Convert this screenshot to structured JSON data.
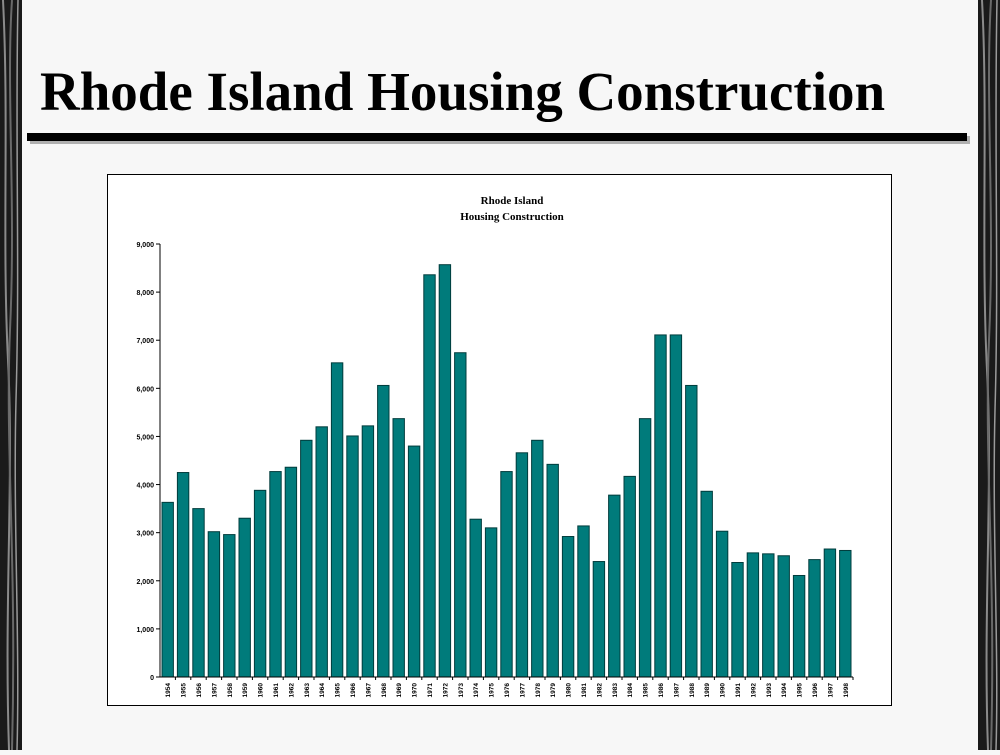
{
  "slide": {
    "title": "Rhode Island Housing Construction"
  },
  "colors": {
    "bar_fill": "#007b7b",
    "bar_stroke": "#003c3c",
    "background": "#f7f7f7",
    "rule": "#000000"
  },
  "chart_data": {
    "type": "bar",
    "title_lines": [
      "Rhode Island",
      "Housing Construction"
    ],
    "xlabel": "",
    "ylabel": "",
    "ylim": [
      0,
      9000
    ],
    "grid": false,
    "legend": "none",
    "ytick_labels": [
      "0",
      "1,000",
      "2,000",
      "3,000",
      "4,000",
      "5,000",
      "6,000",
      "7,000",
      "8,000",
      "9,000"
    ],
    "categories": [
      "1954",
      "1955",
      "1956",
      "1957",
      "1958",
      "1959",
      "1960",
      "1961",
      "1962",
      "1963",
      "1964",
      "1965",
      "1966",
      "1967",
      "1968",
      "1969",
      "1970",
      "1971",
      "1972",
      "1973",
      "1974",
      "1975",
      "1976",
      "1977",
      "1978",
      "1979",
      "1980",
      "1981",
      "1982",
      "1983",
      "1984",
      "1985",
      "1986",
      "1987",
      "1988",
      "1989",
      "1990",
      "1991",
      "1992",
      "1993",
      "1994",
      "1995",
      "1996",
      "1997",
      "1998"
    ],
    "values": [
      3630,
      4250,
      3500,
      3020,
      2960,
      3300,
      3880,
      4270,
      4360,
      4920,
      5200,
      6530,
      5010,
      5220,
      6060,
      5370,
      4800,
      8360,
      8570,
      6740,
      3280,
      3100,
      4270,
      4660,
      4920,
      4420,
      2920,
      3140,
      2400,
      3780,
      4170,
      5370,
      7110,
      7110,
      6060,
      3860,
      3030,
      2380,
      2580,
      2560,
      2520,
      2110,
      2440,
      2660,
      2630
    ]
  }
}
